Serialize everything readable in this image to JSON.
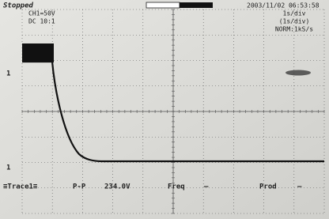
{
  "header": {
    "status": "Stopped",
    "channel": "CH1=50V",
    "coupling": "DC 10:1",
    "timestamp": "2003/11/02 06:53:58",
    "timebase": "1s/div",
    "timebase_paren": "(1s/div)",
    "sampling": "NORM:1kS/s"
  },
  "markers": {
    "ch1_level": "1",
    "trigger": "1"
  },
  "measurements": {
    "trace": "≡Trace1≡",
    "items": [
      {
        "label": "P-P",
        "value": "234.0V"
      },
      {
        "label": "Freq",
        "value": "—"
      },
      {
        "label": "Prod",
        "value": "—"
      }
    ]
  }
}
